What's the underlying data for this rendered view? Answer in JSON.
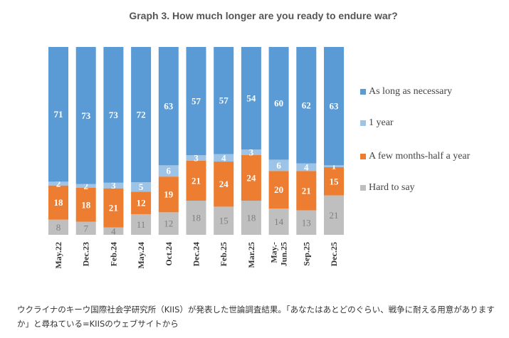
{
  "chart_data": {
    "type": "bar",
    "stacked": true,
    "title": "Graph 3. How much longer are you ready to endure war?",
    "categories": [
      "May.22",
      "Dec.23",
      "Feb.24",
      "May.24",
      "Oct.24",
      "Dec.24",
      "Feb.25",
      "Mar.25",
      "May.-\nJun.25",
      "Sep.25",
      "Dec.25"
    ],
    "series": [
      {
        "name": "Hard to say",
        "color": "#bfbfbf",
        "values": [
          8,
          7,
          4,
          11,
          12,
          18,
          15,
          18,
          14,
          13,
          21
        ]
      },
      {
        "name": "A few months-half a year",
        "color": "#ed7d31",
        "values": [
          18,
          18,
          21,
          12,
          19,
          21,
          24,
          24,
          20,
          21,
          15
        ]
      },
      {
        "name": "1 year",
        "color": "#9dc3e6",
        "values": [
          2,
          2,
          3,
          5,
          6,
          3,
          4,
          3,
          6,
          4,
          1
        ]
      },
      {
        "name": "As long as necessary",
        "color": "#5b9bd5",
        "values": [
          71,
          73,
          73,
          72,
          63,
          57,
          57,
          54,
          60,
          62,
          63
        ]
      }
    ],
    "legend_position": "right",
    "grid": false
  },
  "legend": [
    {
      "label": "As long as necessary",
      "color": "#5b9bd5"
    },
    {
      "label": "1 year",
      "color": "#9dc3e6"
    },
    {
      "label": "A few months-half a year",
      "color": "#ed7d31"
    },
    {
      "label": "Hard to say",
      "color": "#bfbfbf"
    }
  ],
  "caption": "ウクライナのキーウ国際社会学研究所（KIIS）が発表した世論調査結果。「あなたはあとどのぐらい、戦争に耐える用意がありますか」と尋ねている=KIISのウェブサイトから"
}
